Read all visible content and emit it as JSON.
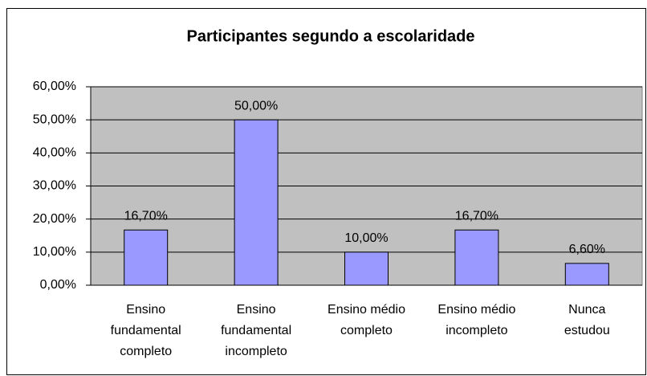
{
  "chart_data": {
    "type": "bar",
    "title": "Participantes segundo a escolaridade",
    "categories": [
      [
        "Ensino",
        "fundamental",
        "completo"
      ],
      [
        "Ensino",
        "fundamental",
        "incompleto"
      ],
      [
        "Ensino médio",
        "completo"
      ],
      [
        "Ensino médio",
        "incompleto"
      ],
      [
        "Nunca",
        "estudou"
      ]
    ],
    "values": [
      16.7,
      50,
      10,
      16.7,
      6.6
    ],
    "value_labels": [
      "16,70%",
      "50,00%",
      "10,00%",
      "16,70%",
      "6,60%"
    ],
    "color": "#9999ff",
    "plot_background": "#c0c0c0",
    "ylim": [
      0,
      60
    ],
    "yticks": [
      {
        "value": 0,
        "label": "0,00%"
      },
      {
        "value": 10,
        "label": "10,00%"
      },
      {
        "value": 20,
        "label": "20,00%"
      },
      {
        "value": 30,
        "label": "30,00%"
      },
      {
        "value": 40,
        "label": "40,00%"
      },
      {
        "value": 50,
        "label": "50,00%"
      },
      {
        "value": 60,
        "label": "60,00%"
      }
    ],
    "grid": true
  }
}
